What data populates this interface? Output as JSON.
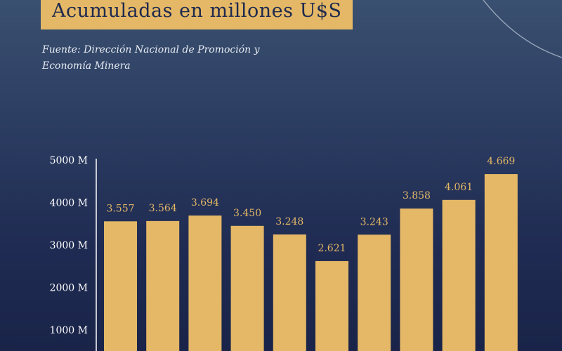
{
  "header": {
    "title": "Acumuladas en millones U$S",
    "source_line1": "Fuente: Dirección Nacional de Promoción y",
    "source_line2": "Economía Minera"
  },
  "colors": {
    "bar": "#e4b866",
    "title_bg": "#e4b866",
    "title_text": "#1f2a4f",
    "value_label": "#e4b866",
    "axis": "#ffffff"
  },
  "chart_data": {
    "type": "bar",
    "title": "Acumuladas en millones U$S",
    "xlabel": "",
    "ylabel": "",
    "ylim": [
      0,
      5000
    ],
    "yticks": [
      1000,
      2000,
      3000,
      4000,
      5000
    ],
    "ytick_labels": [
      "1000 M",
      "2000 M",
      "3000 M",
      "4000 M",
      "5000 M"
    ],
    "grid": false,
    "values": [
      3557,
      3564,
      3694,
      3450,
      3248,
      2621,
      3243,
      3858,
      4061,
      4669
    ],
    "value_labels": [
      "3.557",
      "3.564",
      "3.694",
      "3.450",
      "3.248",
      "2.621",
      "3.243",
      "3.858",
      "4.061",
      "4.669"
    ]
  }
}
